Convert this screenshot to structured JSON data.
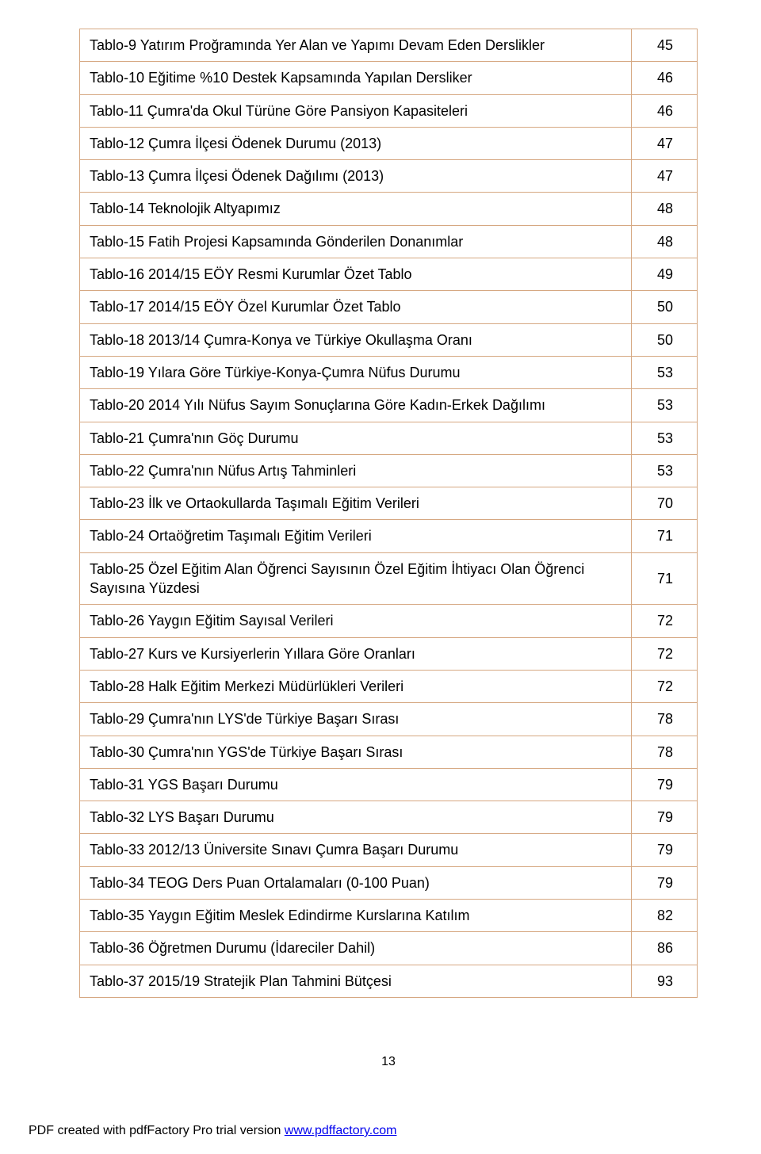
{
  "table": {
    "border_color": "#d6a882",
    "text_color": "#000000",
    "font_size": 18,
    "rows": [
      {
        "label": "Tablo-9 Yatırım Proğramında Yer Alan ve Yapımı Devam Eden Derslikler",
        "page": "45"
      },
      {
        "label": "Tablo-10 Eğitime %10 Destek Kapsamında Yapılan Dersliker",
        "page": "46"
      },
      {
        "label": "Tablo-11 Çumra'da Okul Türüne Göre Pansiyon Kapasiteleri",
        "page": "46"
      },
      {
        "label": "Tablo-12 Çumra İlçesi Ödenek Durumu (2013)",
        "page": "47"
      },
      {
        "label": "Tablo-13 Çumra İlçesi Ödenek Dağılımı (2013)",
        "page": "47"
      },
      {
        "label": "Tablo-14 Teknolojik Altyapımız",
        "page": "48"
      },
      {
        "label": "Tablo-15 Fatih Projesi Kapsamında Gönderilen Donanımlar",
        "page": "48"
      },
      {
        "label": "Tablo-16 2014/15 EÖY Resmi Kurumlar Özet Tablo",
        "page": "49"
      },
      {
        "label": "Tablo-17 2014/15 EÖY Özel Kurumlar Özet Tablo",
        "page": "50"
      },
      {
        "label": "Tablo-18 2013/14 Çumra-Konya ve Türkiye Okullaşma Oranı",
        "page": "50"
      },
      {
        "label": "Tablo-19 Yılara Göre Türkiye-Konya-Çumra Nüfus Durumu",
        "page": "53"
      },
      {
        "label": "Tablo-20 2014 Yılı Nüfus Sayım Sonuçlarına Göre Kadın-Erkek Dağılımı",
        "page": "53"
      },
      {
        "label": "Tablo-21 Çumra'nın Göç Durumu",
        "page": "53"
      },
      {
        "label": "Tablo-22 Çumra'nın Nüfus Artış Tahminleri",
        "page": "53"
      },
      {
        "label": "Tablo-23 İlk ve Ortaokullarda Taşımalı Eğitim Verileri",
        "page": "70"
      },
      {
        "label": "Tablo-24 Ortaöğretim Taşımalı Eğitim Verileri",
        "page": "71"
      },
      {
        "label": "Tablo-25 Özel Eğitim Alan Öğrenci Sayısının Özel Eğitim İhtiyacı Olan Öğrenci Sayısına Yüzdesi",
        "page": "71"
      },
      {
        "label": "Tablo-26 Yaygın Eğitim Sayısal Verileri",
        "page": "72"
      },
      {
        "label": "Tablo-27 Kurs ve Kursiyerlerin Yıllara Göre Oranları",
        "page": "72"
      },
      {
        "label": "Tablo-28 Halk Eğitim Merkezi Müdürlükleri Verileri",
        "page": "72"
      },
      {
        "label": "Tablo-29 Çumra'nın LYS'de Türkiye Başarı Sırası",
        "page": "78"
      },
      {
        "label": "Tablo-30 Çumra'nın YGS'de Türkiye Başarı Sırası",
        "page": "78"
      },
      {
        "label": "Tablo-31 YGS Başarı Durumu",
        "page": "79"
      },
      {
        "label": "Tablo-32 LYS Başarı Durumu",
        "page": "79"
      },
      {
        "label": "Tablo-33 2012/13 Üniversite Sınavı Çumra Başarı Durumu",
        "page": "79"
      },
      {
        "label": "Tablo-34 TEOG Ders Puan Ortalamaları (0-100 Puan)",
        "page": "79"
      },
      {
        "label": "Tablo-35 Yaygın Eğitim Meslek Edindirme Kurslarına Katılım",
        "page": "82"
      },
      {
        "label": "Tablo-36 Öğretmen Durumu (İdareciler Dahil)",
        "page": "86"
      },
      {
        "label": "Tablo-37 2015/19 Stratejik Plan Tahmini Bütçesi",
        "page": "93"
      }
    ]
  },
  "page_number": "13",
  "footer": {
    "prefix": "PDF created with pdfFactory Pro trial version ",
    "link_text": "www.pdffactory.com"
  }
}
